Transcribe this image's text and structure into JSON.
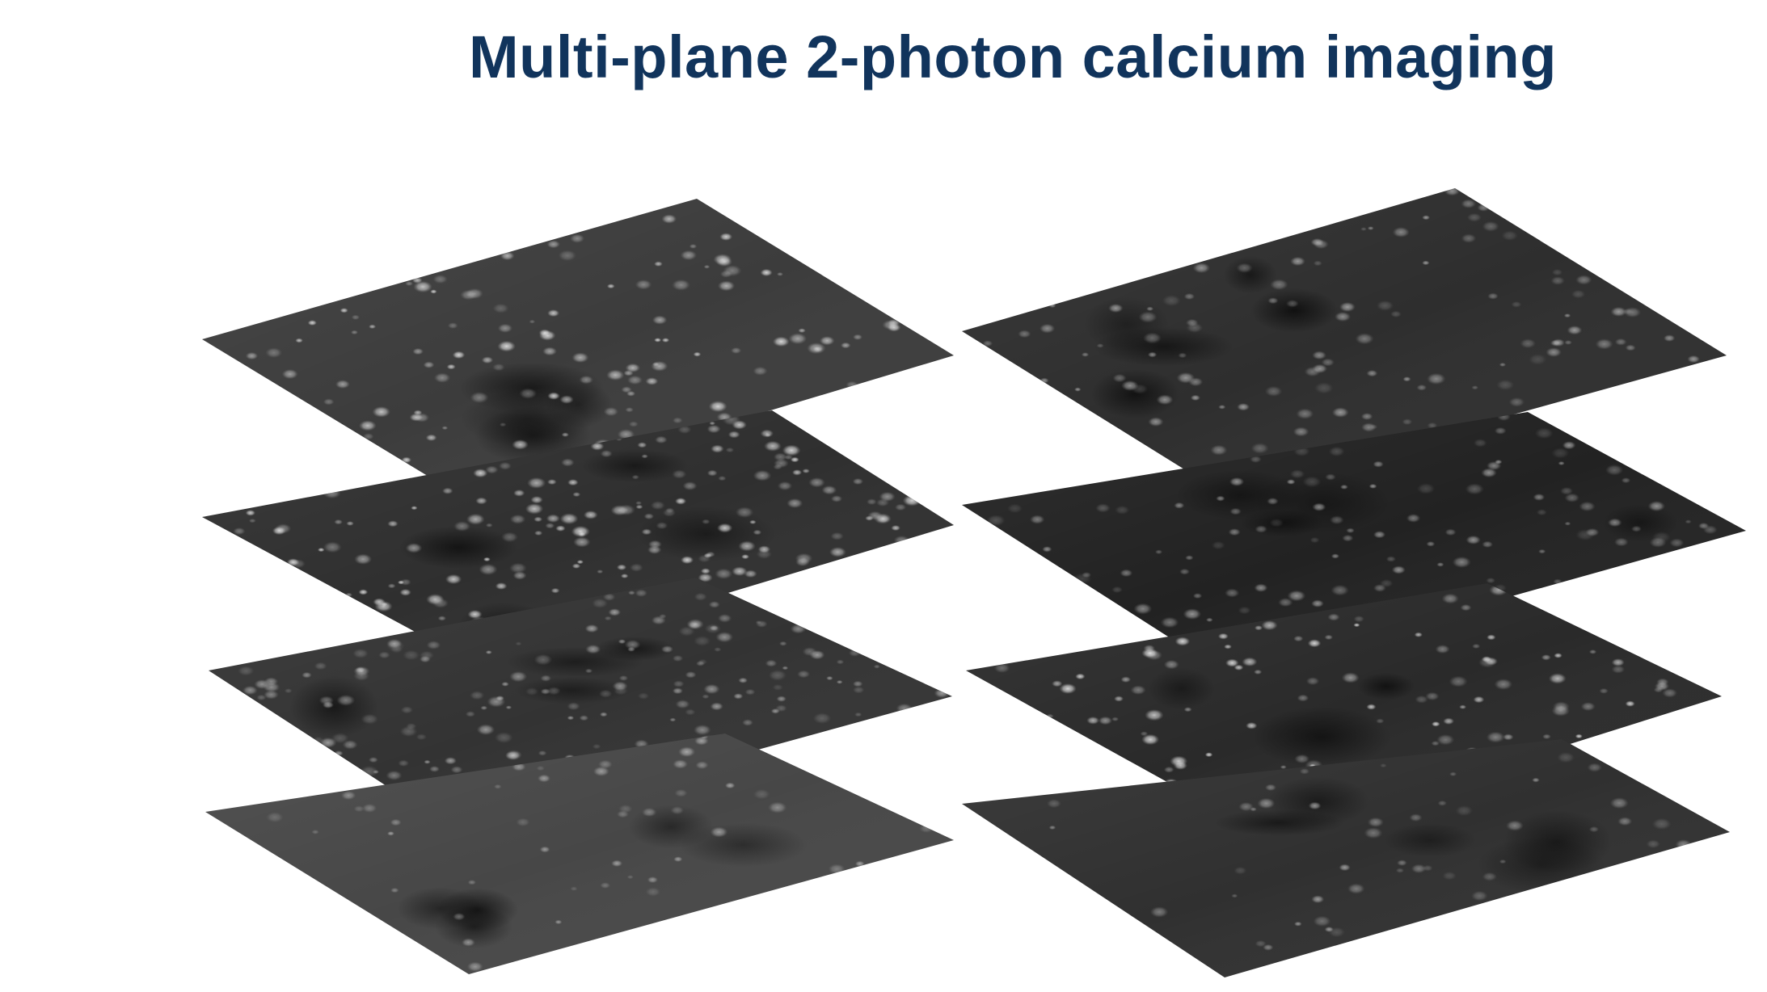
{
  "slide": {
    "title": "Multi-plane 2-photon calcium imaging",
    "title_color": "#11345c",
    "background_color": "#ffffff"
  },
  "figure": {
    "description_icon": "stacked-imaging-planes",
    "stacks": [
      {
        "name": "left-stack",
        "planes": [
          {
            "name": "plane-1",
            "tone": "#3c3c3c",
            "cell_density": "medium",
            "cell_brightness": "bright"
          },
          {
            "name": "plane-2",
            "tone": "#2f2f2f",
            "cell_density": "high",
            "cell_brightness": "bright"
          },
          {
            "name": "plane-3",
            "tone": "#333333",
            "cell_density": "high",
            "cell_brightness": "medium"
          },
          {
            "name": "plane-4",
            "tone": "#474747",
            "cell_density": "low",
            "cell_brightness": "medium"
          }
        ]
      },
      {
        "name": "right-stack",
        "planes": [
          {
            "name": "plane-1",
            "tone": "#2e2e2e",
            "cell_density": "medium",
            "cell_brightness": "medium"
          },
          {
            "name": "plane-2",
            "tone": "#222222",
            "cell_density": "medium",
            "cell_brightness": "medium"
          },
          {
            "name": "plane-3",
            "tone": "#2a2a2a",
            "cell_density": "medium",
            "cell_brightness": "bright"
          },
          {
            "name": "plane-4",
            "tone": "#303030",
            "cell_density": "low",
            "cell_brightness": "medium"
          }
        ]
      }
    ]
  }
}
